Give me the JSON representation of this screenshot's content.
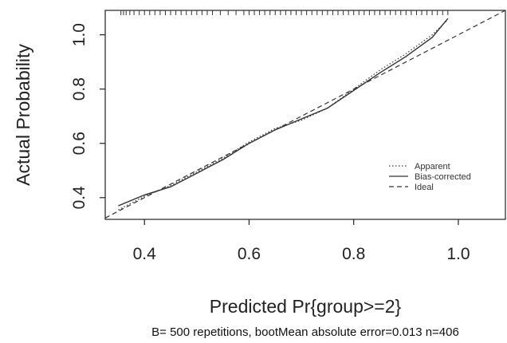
{
  "chart_data": {
    "type": "line",
    "xlabel": "Predicted Pr{group>=2}",
    "ylabel": "Actual Probability",
    "subtitle": "B= 500 repetitions, bootMean absolute error=0.013 n=406",
    "xlim": [
      0.325,
      1.09
    ],
    "ylim": [
      0.32,
      1.09
    ],
    "x_ticks": [
      "0.4",
      "0.6",
      "0.8",
      "1.0"
    ],
    "y_ticks": [
      "0.4",
      "0.6",
      "0.8",
      "1.0"
    ],
    "grid": false,
    "legend_position": "bottom-right",
    "rug": [
      0.355,
      0.36,
      0.365,
      0.372,
      0.38,
      0.39,
      0.4,
      0.41,
      0.42,
      0.43,
      0.44,
      0.45,
      0.46,
      0.47,
      0.48,
      0.49,
      0.5,
      0.51,
      0.52,
      0.53,
      0.545,
      0.56,
      0.575,
      0.59,
      0.6,
      0.61,
      0.62,
      0.63,
      0.64,
      0.65,
      0.66,
      0.67,
      0.68,
      0.69,
      0.7,
      0.71,
      0.72,
      0.73,
      0.74,
      0.75,
      0.76,
      0.77,
      0.78,
      0.79,
      0.8,
      0.81,
      0.82,
      0.83,
      0.84,
      0.85,
      0.86,
      0.87,
      0.88,
      0.89,
      0.9,
      0.91,
      0.92,
      0.93,
      0.94,
      0.95,
      0.96,
      0.97,
      0.98
    ],
    "series": [
      {
        "name": "Apparent",
        "style": "dotted",
        "x": [
          0.35,
          0.4,
          0.45,
          0.5,
          0.55,
          0.6,
          0.65,
          0.7,
          0.75,
          0.8,
          0.85,
          0.9,
          0.95,
          0.98
        ],
        "y": [
          0.355,
          0.405,
          0.445,
          0.495,
          0.545,
          0.605,
          0.655,
          0.685,
          0.73,
          0.8,
          0.87,
          0.93,
          1.0,
          1.055
        ]
      },
      {
        "name": "Bias-corrected",
        "style": "solid",
        "x": [
          0.35,
          0.4,
          0.45,
          0.5,
          0.55,
          0.6,
          0.65,
          0.7,
          0.75,
          0.8,
          0.85,
          0.9,
          0.95,
          0.98
        ],
        "y": [
          0.37,
          0.41,
          0.44,
          0.49,
          0.54,
          0.6,
          0.65,
          0.69,
          0.73,
          0.795,
          0.86,
          0.92,
          0.99,
          1.06
        ]
      },
      {
        "name": "Ideal",
        "style": "dashed",
        "x": [
          0.325,
          1.09
        ],
        "y": [
          0.325,
          1.09
        ]
      }
    ]
  }
}
